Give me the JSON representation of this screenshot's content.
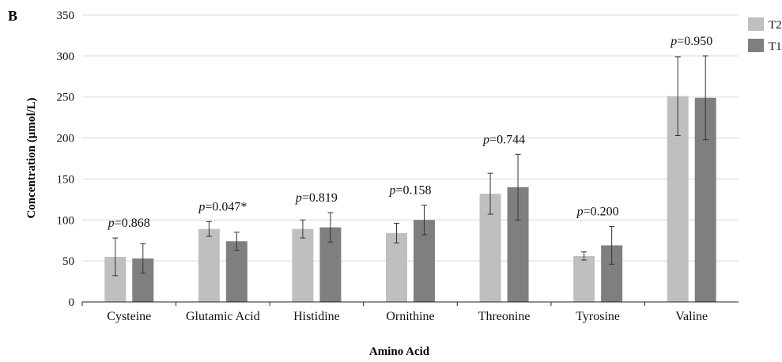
{
  "panel_label": "B",
  "chart_data": {
    "type": "bar",
    "title": "",
    "xlabel": "Amino Acid",
    "ylabel": "Concentration (μmol/L)",
    "ylim": [
      0,
      350
    ],
    "yticks": [
      0,
      50,
      100,
      150,
      200,
      250,
      300,
      350
    ],
    "grid": true,
    "legend_position": "right (clipped)",
    "categories": [
      "Cysteine",
      "Glutamic Acid",
      "Histidine",
      "Ornithine",
      "Threonine",
      "Tyrosine",
      "Valine"
    ],
    "series": [
      {
        "name": "T2",
        "color": "#bfbfbf",
        "values": [
          55,
          89,
          89,
          84,
          132,
          56,
          251
        ],
        "error": [
          23,
          9,
          11,
          12,
          25,
          5,
          48
        ]
      },
      {
        "name": "T1",
        "color": "#7f7f7f",
        "values": [
          53,
          74,
          91,
          100,
          140,
          69,
          249
        ],
        "error": [
          18,
          11,
          18,
          18,
          40,
          23,
          51
        ]
      }
    ],
    "annotations": [
      {
        "prefix": "p",
        "value": "=0.868"
      },
      {
        "prefix": "p",
        "value": "=0.047*"
      },
      {
        "prefix": "p",
        "value": "=0.819"
      },
      {
        "prefix": "p",
        "value": "=0.158"
      },
      {
        "prefix": "p",
        "value": "=0.744"
      },
      {
        "prefix": "p",
        "value": "=0.200"
      },
      {
        "prefix": "p",
        "value": "=0.950"
      }
    ]
  }
}
